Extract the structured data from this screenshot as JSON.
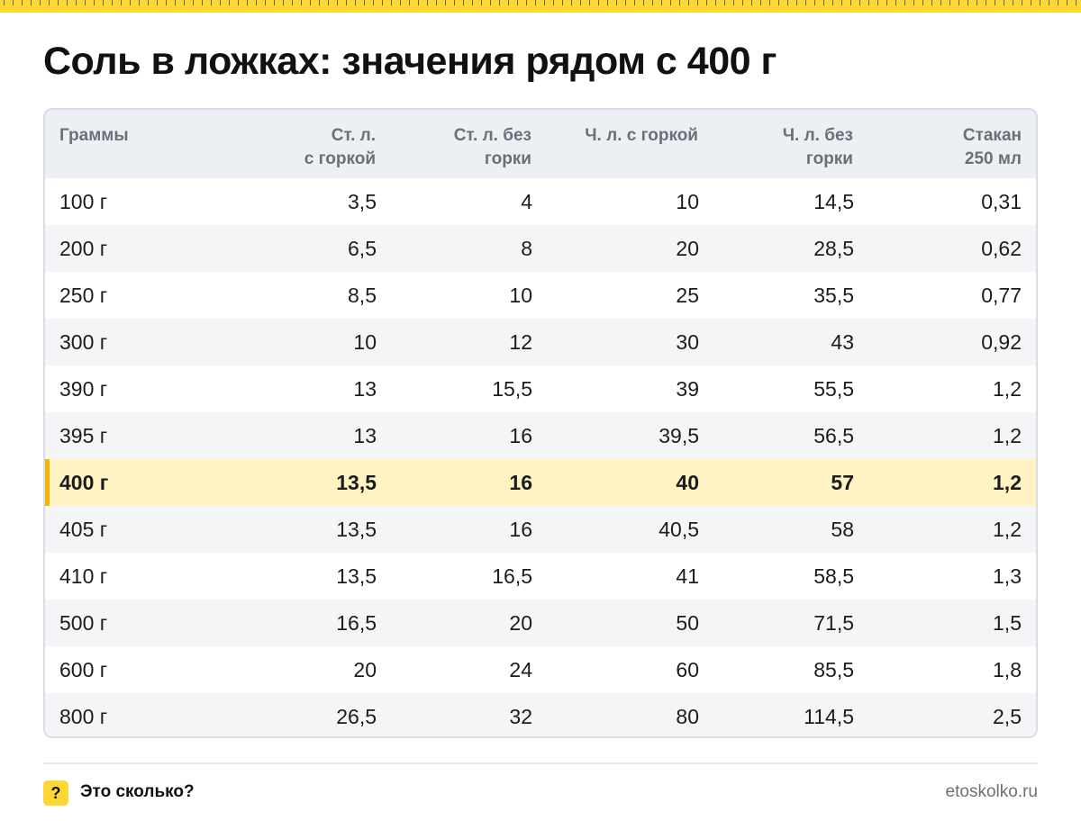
{
  "title": "Соль в ложках: значения рядом с 400 г",
  "table": {
    "headers": [
      "Граммы",
      "Ст. л.\nс горкой",
      "Ст. л. без\nгорки",
      "Ч. л. с горкой",
      "Ч. л. без\nгорки",
      "Стакан\n250 мл"
    ],
    "rows": [
      {
        "cells": [
          "100 г",
          "3,5",
          "4",
          "10",
          "14,5",
          "0,31"
        ],
        "highlighted": false
      },
      {
        "cells": [
          "200 г",
          "6,5",
          "8",
          "20",
          "28,5",
          "0,62"
        ],
        "highlighted": false
      },
      {
        "cells": [
          "250 г",
          "8,5",
          "10",
          "25",
          "35,5",
          "0,77"
        ],
        "highlighted": false
      },
      {
        "cells": [
          "300 г",
          "10",
          "12",
          "30",
          "43",
          "0,92"
        ],
        "highlighted": false
      },
      {
        "cells": [
          "390 г",
          "13",
          "15,5",
          "39",
          "55,5",
          "1,2"
        ],
        "highlighted": false
      },
      {
        "cells": [
          "395 г",
          "13",
          "16",
          "39,5",
          "56,5",
          "1,2"
        ],
        "highlighted": false
      },
      {
        "cells": [
          "400 г",
          "13,5",
          "16",
          "40",
          "57",
          "1,2"
        ],
        "highlighted": true
      },
      {
        "cells": [
          "405 г",
          "13,5",
          "16",
          "40,5",
          "58",
          "1,2"
        ],
        "highlighted": false
      },
      {
        "cells": [
          "410 г",
          "13,5",
          "16,5",
          "41",
          "58,5",
          "1,3"
        ],
        "highlighted": false
      },
      {
        "cells": [
          "500 г",
          "16,5",
          "20",
          "50",
          "71,5",
          "1,5"
        ],
        "highlighted": false
      },
      {
        "cells": [
          "600 г",
          "20",
          "24",
          "60",
          "85,5",
          "1,8"
        ],
        "highlighted": false
      },
      {
        "cells": [
          "800 г",
          "26,5",
          "32",
          "80",
          "114,5",
          "2,5"
        ],
        "highlighted": false
      }
    ]
  },
  "footer": {
    "logo_glyph": "?",
    "brand": "Это сколько?",
    "site": "etoskolko.ru"
  },
  "colors": {
    "accent": "#fdd835",
    "highlight_row": "#fff3c4",
    "highlight_bar": "#f4b400",
    "header_bg": "#eceff3",
    "alt_row": "#f4f5f7"
  }
}
